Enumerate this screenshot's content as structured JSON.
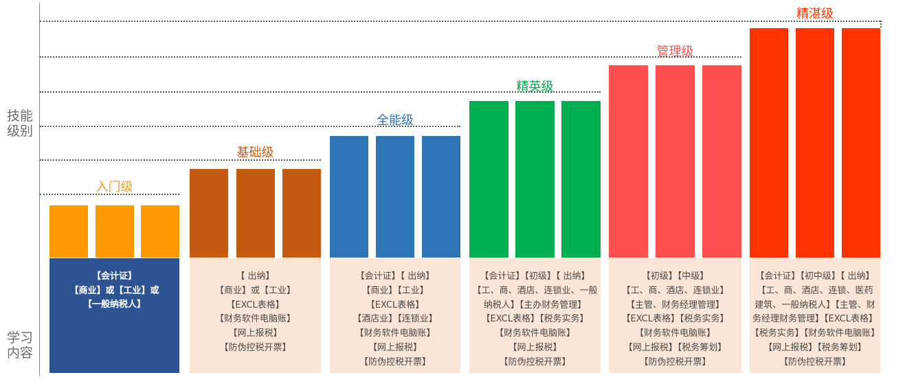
{
  "axis": {
    "skill_label": [
      "技能",
      "级别"
    ],
    "learn_label": [
      "学习",
      "内容"
    ]
  },
  "levels": [
    {
      "name": "入门级",
      "color": "#ff9900",
      "title_color": "#f39c12",
      "box_style": "dark",
      "box_color": "#2e5393",
      "content": [
        "【会计证】",
        "【商业】或【工业】或",
        "【一般纳税人】"
      ]
    },
    {
      "name": "基础级",
      "color": "#c55a11",
      "title_color": "#c55a11",
      "box_style": "light",
      "box_color": "#fbe5d6",
      "content": [
        "【 出纳】",
        "【商业】或【工业】",
        "【EXCL表格】",
        "【财务软件电脑账】",
        "【网上报税】",
        "【防伪控税开票】"
      ]
    },
    {
      "name": "全能级",
      "color": "#2e75b6",
      "title_color": "#2e75b6",
      "box_style": "light",
      "box_color": "#fbe5d6",
      "content": [
        "【会计证】【 出纳】",
        "【商业】【工业】",
        "【EXCL表格】",
        "【酒店业】【连锁业】",
        "【财务软件电脑账】",
        "【网上报税】",
        "【防伪控税开票】"
      ]
    },
    {
      "name": "精英级",
      "color": "#00b050",
      "title_color": "#00a650",
      "box_style": "light",
      "box_color": "#fbe5d6",
      "content": [
        "【会计证】【初级】【 出纳】",
        "【工、商、酒店、连锁业、一般",
        "纳税人】【主办财务管理】",
        "【EXCL表格】【税务实务】",
        "【财务软件电脑账】",
        "【网上报税】",
        "【防伪控税开票】"
      ]
    },
    {
      "name": "管理级",
      "color": "#ff5050",
      "title_color": "#ff5050",
      "box_style": "light",
      "box_color": "#fbe5d6",
      "content": [
        "【初级】【中级】",
        "【工、商、酒店、连锁业】",
        "【主管、财务经理管理】",
        "【EXCL表格】【税务实务】",
        "【财务软件电脑账】",
        "【网上报税】【税务筹划】",
        "【防伪控税开票】"
      ]
    },
    {
      "name": "精湛级",
      "color": "#ff3300",
      "title_color": "#ff3300",
      "box_style": "light",
      "box_color": "#fbe5d6",
      "content": [
        "【会计证】【初中级】【 出纳】",
        "【工、商、酒店、连锁、医药",
        "建筑、一般纳税人】【主管、财",
        "务经理财务管理】【EXCL表格】",
        "【税务实务】【财务软件电脑账】",
        "【网上报税】【税务筹划】",
        "【防伪控税开票】"
      ]
    }
  ]
}
